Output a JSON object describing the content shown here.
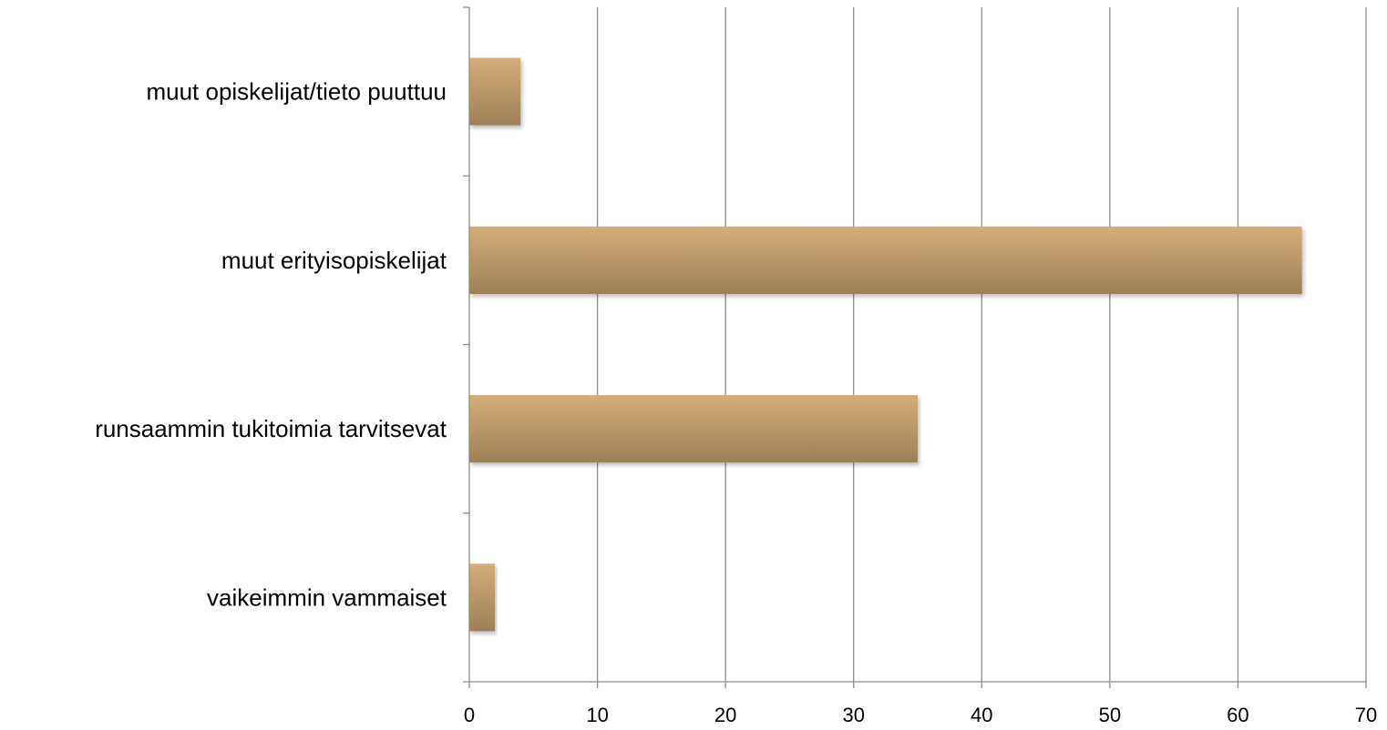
{
  "chart_data": {
    "type": "bar",
    "orientation": "horizontal",
    "categories": [
      "vaikeimmin vammaiset",
      "runsaammin tukitoimia tarvitsevat",
      "muut erityisopiskelijat",
      "muut opiskelijat/tieto puuttuu"
    ],
    "values": [
      2,
      35,
      65,
      4
    ],
    "xlim": [
      0,
      70
    ],
    "x_ticks": [
      0,
      10,
      20,
      30,
      40,
      50,
      60,
      70
    ],
    "grid": "vertical",
    "legend": "none",
    "title": "",
    "xlabel": "",
    "ylabel": "",
    "colors": {
      "bar_top": "#d4ae78",
      "bar_bottom": "#9c8056",
      "grid": "#8c8c8c",
      "axis": "#8c8c8c",
      "text": "#000000"
    }
  }
}
